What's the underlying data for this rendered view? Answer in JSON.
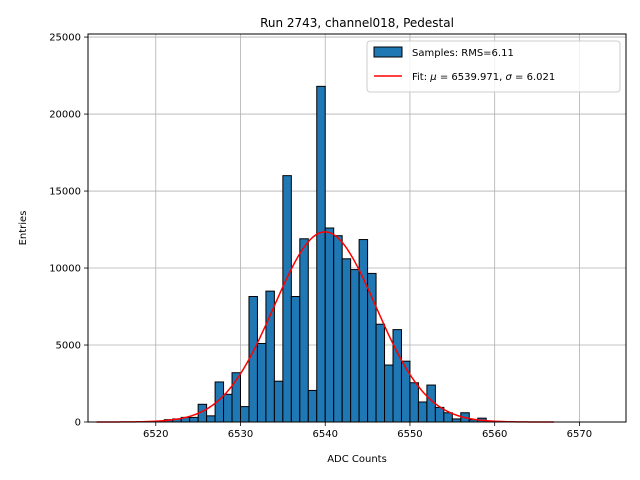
{
  "chart_data": {
    "type": "histogram",
    "title": "Run 2743, channel018, Pedestal",
    "xlabel": "ADC Counts",
    "ylabel": "Entries",
    "xlim": [
      6512,
      6575.5
    ],
    "ylim": [
      0,
      25200
    ],
    "xticks": [
      6520,
      6530,
      6540,
      6550,
      6560,
      6570
    ],
    "yticks": [
      0,
      5000,
      10000,
      15000,
      20000,
      25000
    ],
    "grid": true,
    "legend_position": "top-right",
    "colors": {
      "bars": "#1f77b4",
      "edge": "#000000",
      "fit": "#ff0000",
      "grid": "#b0b0b0"
    },
    "histogram": {
      "name": "Samples: RMS=6.11",
      "bin_start": 6521,
      "bin_width": 1,
      "counts": [
        150,
        200,
        300,
        300,
        1150,
        400,
        2600,
        1800,
        3200,
        1000,
        8150,
        5100,
        8500,
        2650,
        16000,
        8150,
        11900,
        2050,
        21800,
        12600,
        12100,
        10600,
        9900,
        11850,
        9650,
        6350,
        3700,
        6000,
        3950,
        2550,
        1300,
        2400,
        950,
        600,
        200,
        600,
        150,
        250
      ]
    },
    "fit": {
      "name": "Fit",
      "label_prefix": "Fit: ",
      "mu_value": "6539.971",
      "sigma_value": "6.021",
      "mu": 6539.971,
      "sigma": 6.021,
      "amplitude": 12350,
      "x_range": [
        6513,
        6567
      ]
    }
  }
}
